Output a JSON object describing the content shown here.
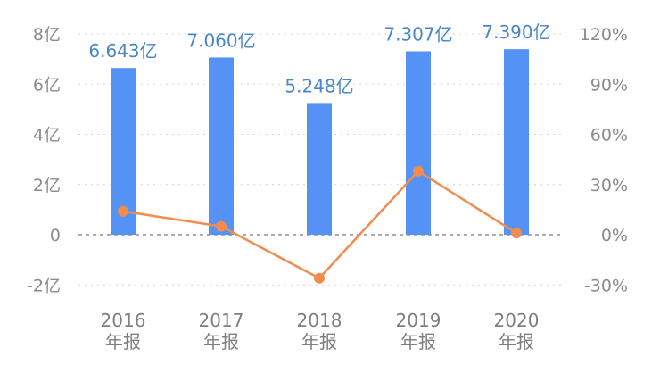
{
  "chart_data": {
    "type": "bar",
    "categories": [
      "2016\n年报",
      "2017\n年报",
      "2018\n年报",
      "2019\n年报",
      "2020\n年报"
    ],
    "series": [
      {
        "type": "bar",
        "axis": "left",
        "values": [
          6.643,
          7.06,
          5.248,
          7.307,
          7.39
        ],
        "labels": [
          "6.643亿",
          "7.060亿",
          "5.248亿",
          "7.307亿",
          "7.390亿"
        ],
        "color": "#5592f5"
      },
      {
        "type": "line",
        "axis": "right",
        "values": [
          14,
          5,
          -26,
          38,
          1
        ],
        "color": "#f08c4f"
      }
    ],
    "left_axis": {
      "ylim": [
        -2,
        8
      ],
      "ticks": [
        "8亿",
        "6亿",
        "4亿",
        "2亿",
        "0",
        "-2亿"
      ],
      "tick_values": [
        8,
        6,
        4,
        2,
        0,
        -2
      ]
    },
    "right_axis": {
      "ylim": [
        -30,
        120
      ],
      "ticks": [
        "120%",
        "90%",
        "60%",
        "30%",
        "0%",
        "-30%"
      ],
      "tick_values": [
        120,
        90,
        60,
        30,
        0,
        -30
      ]
    },
    "grid": true,
    "legend": "none"
  }
}
